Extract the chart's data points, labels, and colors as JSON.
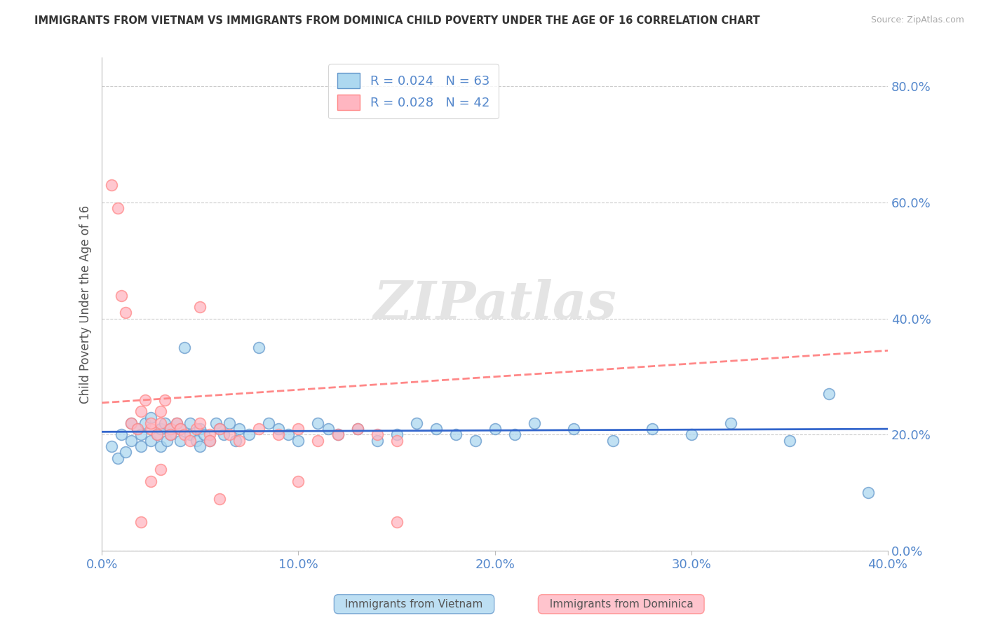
{
  "title": "IMMIGRANTS FROM VIETNAM VS IMMIGRANTS FROM DOMINICA CHILD POVERTY UNDER THE AGE OF 16 CORRELATION CHART",
  "source": "Source: ZipAtlas.com",
  "ylabel": "Child Poverty Under the Age of 16",
  "xlim": [
    0.0,
    0.4
  ],
  "ylim": [
    0.0,
    0.85
  ],
  "yticks": [
    0.0,
    0.2,
    0.4,
    0.6,
    0.8
  ],
  "xticks": [
    0.0,
    0.1,
    0.2,
    0.3,
    0.4
  ],
  "vietnam_fill": "#ADD8F0",
  "vietnam_edge": "#6699CC",
  "dominica_fill": "#FFB6C1",
  "dominica_edge": "#FF8888",
  "vietnam_line_color": "#3366CC",
  "dominica_line_color": "#FF8888",
  "R_vietnam": 0.024,
  "N_vietnam": 63,
  "R_dominica": 0.028,
  "N_dominica": 42,
  "legend_bottom_vietnam": "Immigrants from Vietnam",
  "legend_bottom_dominica": "Immigrants from Dominica",
  "watermark": "ZIPatlas",
  "tick_color": "#5588CC",
  "title_color": "#333333",
  "vietnam_scatter_x": [
    0.005,
    0.008,
    0.01,
    0.012,
    0.015,
    0.015,
    0.018,
    0.02,
    0.02,
    0.022,
    0.025,
    0.025,
    0.028,
    0.03,
    0.03,
    0.032,
    0.033,
    0.035,
    0.035,
    0.038,
    0.04,
    0.04,
    0.042,
    0.045,
    0.045,
    0.048,
    0.05,
    0.05,
    0.052,
    0.055,
    0.058,
    0.06,
    0.062,
    0.065,
    0.068,
    0.07,
    0.075,
    0.08,
    0.085,
    0.09,
    0.095,
    0.1,
    0.11,
    0.115,
    0.12,
    0.13,
    0.14,
    0.15,
    0.16,
    0.17,
    0.18,
    0.19,
    0.2,
    0.21,
    0.22,
    0.24,
    0.26,
    0.28,
    0.3,
    0.32,
    0.35,
    0.37,
    0.39
  ],
  "vietnam_scatter_y": [
    0.18,
    0.16,
    0.2,
    0.17,
    0.22,
    0.19,
    0.21,
    0.18,
    0.2,
    0.22,
    0.19,
    0.23,
    0.2,
    0.21,
    0.18,
    0.22,
    0.19,
    0.2,
    0.21,
    0.22,
    0.19,
    0.21,
    0.35,
    0.2,
    0.22,
    0.19,
    0.18,
    0.21,
    0.2,
    0.19,
    0.22,
    0.21,
    0.2,
    0.22,
    0.19,
    0.21,
    0.2,
    0.35,
    0.22,
    0.21,
    0.2,
    0.19,
    0.22,
    0.21,
    0.2,
    0.21,
    0.19,
    0.2,
    0.22,
    0.21,
    0.2,
    0.19,
    0.21,
    0.2,
    0.22,
    0.21,
    0.19,
    0.21,
    0.2,
    0.22,
    0.19,
    0.27,
    0.1
  ],
  "dominica_scatter_x": [
    0.005,
    0.008,
    0.01,
    0.012,
    0.015,
    0.018,
    0.02,
    0.022,
    0.025,
    0.025,
    0.028,
    0.03,
    0.03,
    0.032,
    0.035,
    0.035,
    0.038,
    0.04,
    0.042,
    0.045,
    0.048,
    0.05,
    0.055,
    0.06,
    0.065,
    0.07,
    0.08,
    0.09,
    0.1,
    0.11,
    0.12,
    0.13,
    0.14,
    0.15,
    0.05,
    0.055,
    0.06,
    0.03,
    0.02,
    0.025,
    0.15,
    0.1
  ],
  "dominica_scatter_y": [
    0.63,
    0.59,
    0.44,
    0.41,
    0.22,
    0.21,
    0.24,
    0.26,
    0.21,
    0.22,
    0.2,
    0.22,
    0.24,
    0.26,
    0.21,
    0.2,
    0.22,
    0.21,
    0.2,
    0.19,
    0.21,
    0.22,
    0.2,
    0.21,
    0.2,
    0.19,
    0.21,
    0.2,
    0.21,
    0.19,
    0.2,
    0.21,
    0.2,
    0.19,
    0.42,
    0.19,
    0.09,
    0.14,
    0.05,
    0.12,
    0.05,
    0.12
  ],
  "vietnam_trend_x": [
    0.0,
    0.4
  ],
  "vietnam_trend_y": [
    0.205,
    0.21
  ],
  "dominica_trend_x": [
    0.0,
    0.4
  ],
  "dominica_trend_y": [
    0.255,
    0.345
  ]
}
